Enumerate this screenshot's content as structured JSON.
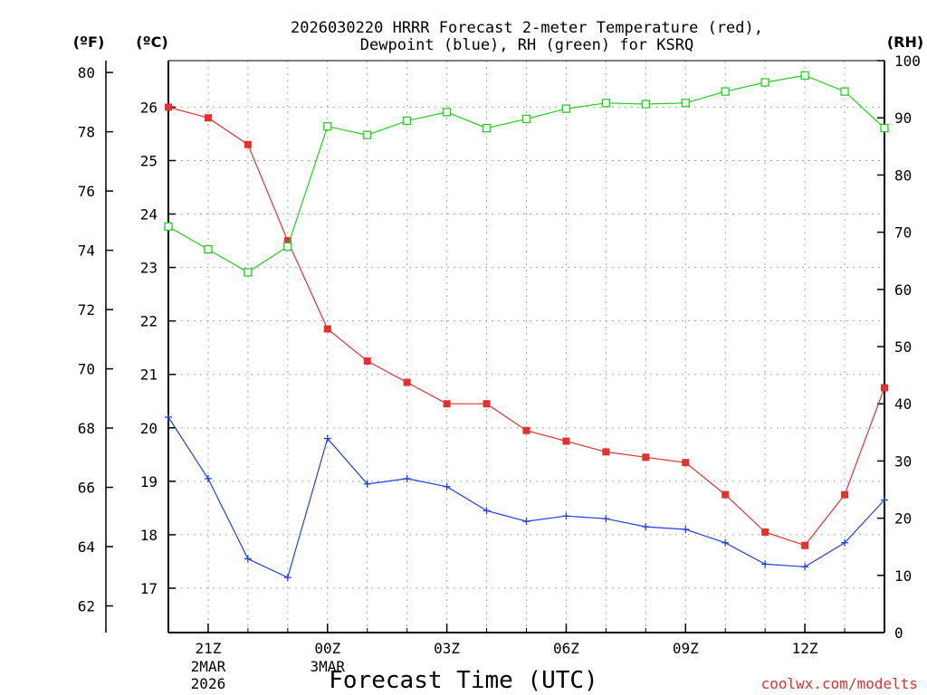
{
  "chart_data": {
    "type": "line",
    "title_line1": "2026030220 HRRR Forecast 2-meter Temperature (red),",
    "title_line2": "Dewpoint (blue), RH (green) for KSRQ",
    "unit_left_f": "(ºF)",
    "unit_left_c": "(ºC)",
    "unit_right": "(RH)",
    "xlabel": "Forecast Time (UTC)",
    "credit": "coolwx.com/modelts",
    "x_hours": [
      0,
      1,
      2,
      3,
      4,
      5,
      6,
      7,
      8,
      9,
      10,
      11,
      12,
      13,
      14,
      15,
      16,
      17,
      18
    ],
    "x_range": [
      0,
      18
    ],
    "x_ticks": [
      {
        "hour": 1,
        "label": "21Z",
        "sub1": "2MAR",
        "sub2": "2026"
      },
      {
        "hour": 4,
        "label": "00Z",
        "sub1": "3MAR",
        "sub2": ""
      },
      {
        "hour": 7,
        "label": "03Z",
        "sub1": "",
        "sub2": ""
      },
      {
        "hour": 10,
        "label": "06Z",
        "sub1": "",
        "sub2": ""
      },
      {
        "hour": 13,
        "label": "09Z",
        "sub1": "",
        "sub2": ""
      },
      {
        "hour": 16,
        "label": "12Z",
        "sub1": "",
        "sub2": ""
      }
    ],
    "celsius_range": [
      16.17,
      26.87
    ],
    "celsius_ticks": [
      "17",
      "18",
      "19",
      "20",
      "21",
      "22",
      "23",
      "24",
      "25",
      "26"
    ],
    "fahrenheit_range": [
      61.1,
      80.4
    ],
    "fahrenheit_ticks": [
      "62",
      "64",
      "66",
      "68",
      "70",
      "72",
      "74",
      "76",
      "78",
      "80"
    ],
    "rh_range": [
      0,
      100
    ],
    "rh_ticks": [
      "0",
      "10",
      "20",
      "30",
      "40",
      "50",
      "60",
      "70",
      "80",
      "90",
      "100"
    ],
    "series": [
      {
        "name": "Temperature",
        "unit": "C",
        "color": "#e53030",
        "marker": "filled-square",
        "values": [
          26.0,
          25.8,
          25.3,
          23.5,
          21.85,
          21.25,
          20.85,
          20.45,
          20.45,
          19.95,
          19.75,
          19.55,
          19.45,
          19.35,
          18.75,
          18.05,
          17.8,
          18.75,
          20.75
        ]
      },
      {
        "name": "Dewpoint",
        "unit": "C",
        "color": "#2040e0",
        "marker": "plus",
        "values": [
          20.2,
          19.05,
          17.55,
          17.2,
          19.8,
          18.95,
          19.05,
          18.9,
          18.45,
          18.25,
          18.35,
          18.3,
          18.15,
          18.1,
          17.85,
          17.45,
          17.4,
          17.85,
          18.65
        ]
      },
      {
        "name": "RH",
        "unit": "%",
        "color": "#20d020",
        "marker": "open-square",
        "values": [
          71,
          67,
          63,
          67.5,
          88.5,
          87,
          89.5,
          91,
          88.2,
          89.8,
          91.6,
          92.6,
          92.4,
          92.6,
          94.6,
          96.2,
          97.4,
          94.6,
          88.2
        ]
      }
    ]
  }
}
